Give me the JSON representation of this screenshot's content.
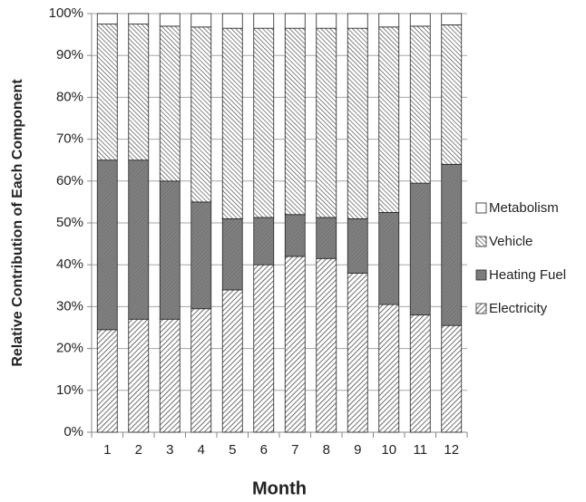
{
  "chart_data": {
    "type": "stacked-bar",
    "x_label": "Month",
    "y_label": "Relative Contribution of Each Component",
    "categories": [
      "1",
      "2",
      "3",
      "4",
      "5",
      "6",
      "7",
      "8",
      "9",
      "10",
      "11",
      "12"
    ],
    "series": [
      {
        "name": "Electricity",
        "color": "#ffffff",
        "pattern": "slash",
        "values": [
          24.5,
          27,
          27,
          29.5,
          34,
          40,
          42,
          41.5,
          38,
          30.5,
          28,
          25.5
        ]
      },
      {
        "name": "Heating Fuel",
        "color": "#808080",
        "pattern": "fine",
        "values": [
          40.5,
          38,
          33,
          25.5,
          17,
          11.3,
          10,
          9.8,
          13,
          22,
          31.5,
          38.5
        ]
      },
      {
        "name": "Vehicle",
        "color": "#ffffff",
        "pattern": "backslash",
        "values": [
          32.5,
          32.5,
          37,
          41.8,
          45.5,
          45.2,
          44.5,
          45.2,
          45.5,
          44.3,
          37.5,
          33.3
        ]
      },
      {
        "name": "Metabolism",
        "color": "#ffffff",
        "pattern": "none",
        "values": [
          2.5,
          2.5,
          3,
          3.2,
          3.5,
          3.5,
          3.5,
          3.5,
          3.5,
          3.2,
          3,
          2.7
        ]
      }
    ],
    "ylim": [
      0,
      100
    ],
    "yticks": [
      {
        "value": 0,
        "label": "0%"
      },
      {
        "value": 10,
        "label": "10%"
      },
      {
        "value": 20,
        "label": "20%"
      },
      {
        "value": 30,
        "label": "30%"
      },
      {
        "value": 40,
        "label": "40%"
      },
      {
        "value": 50,
        "label": "50%"
      },
      {
        "value": 60,
        "label": "60%"
      },
      {
        "value": 70,
        "label": "70%"
      },
      {
        "value": 80,
        "label": "80%"
      },
      {
        "value": 90,
        "label": "90%"
      },
      {
        "value": 100,
        "label": "100%"
      }
    ],
    "grid": true,
    "legend": "right"
  }
}
